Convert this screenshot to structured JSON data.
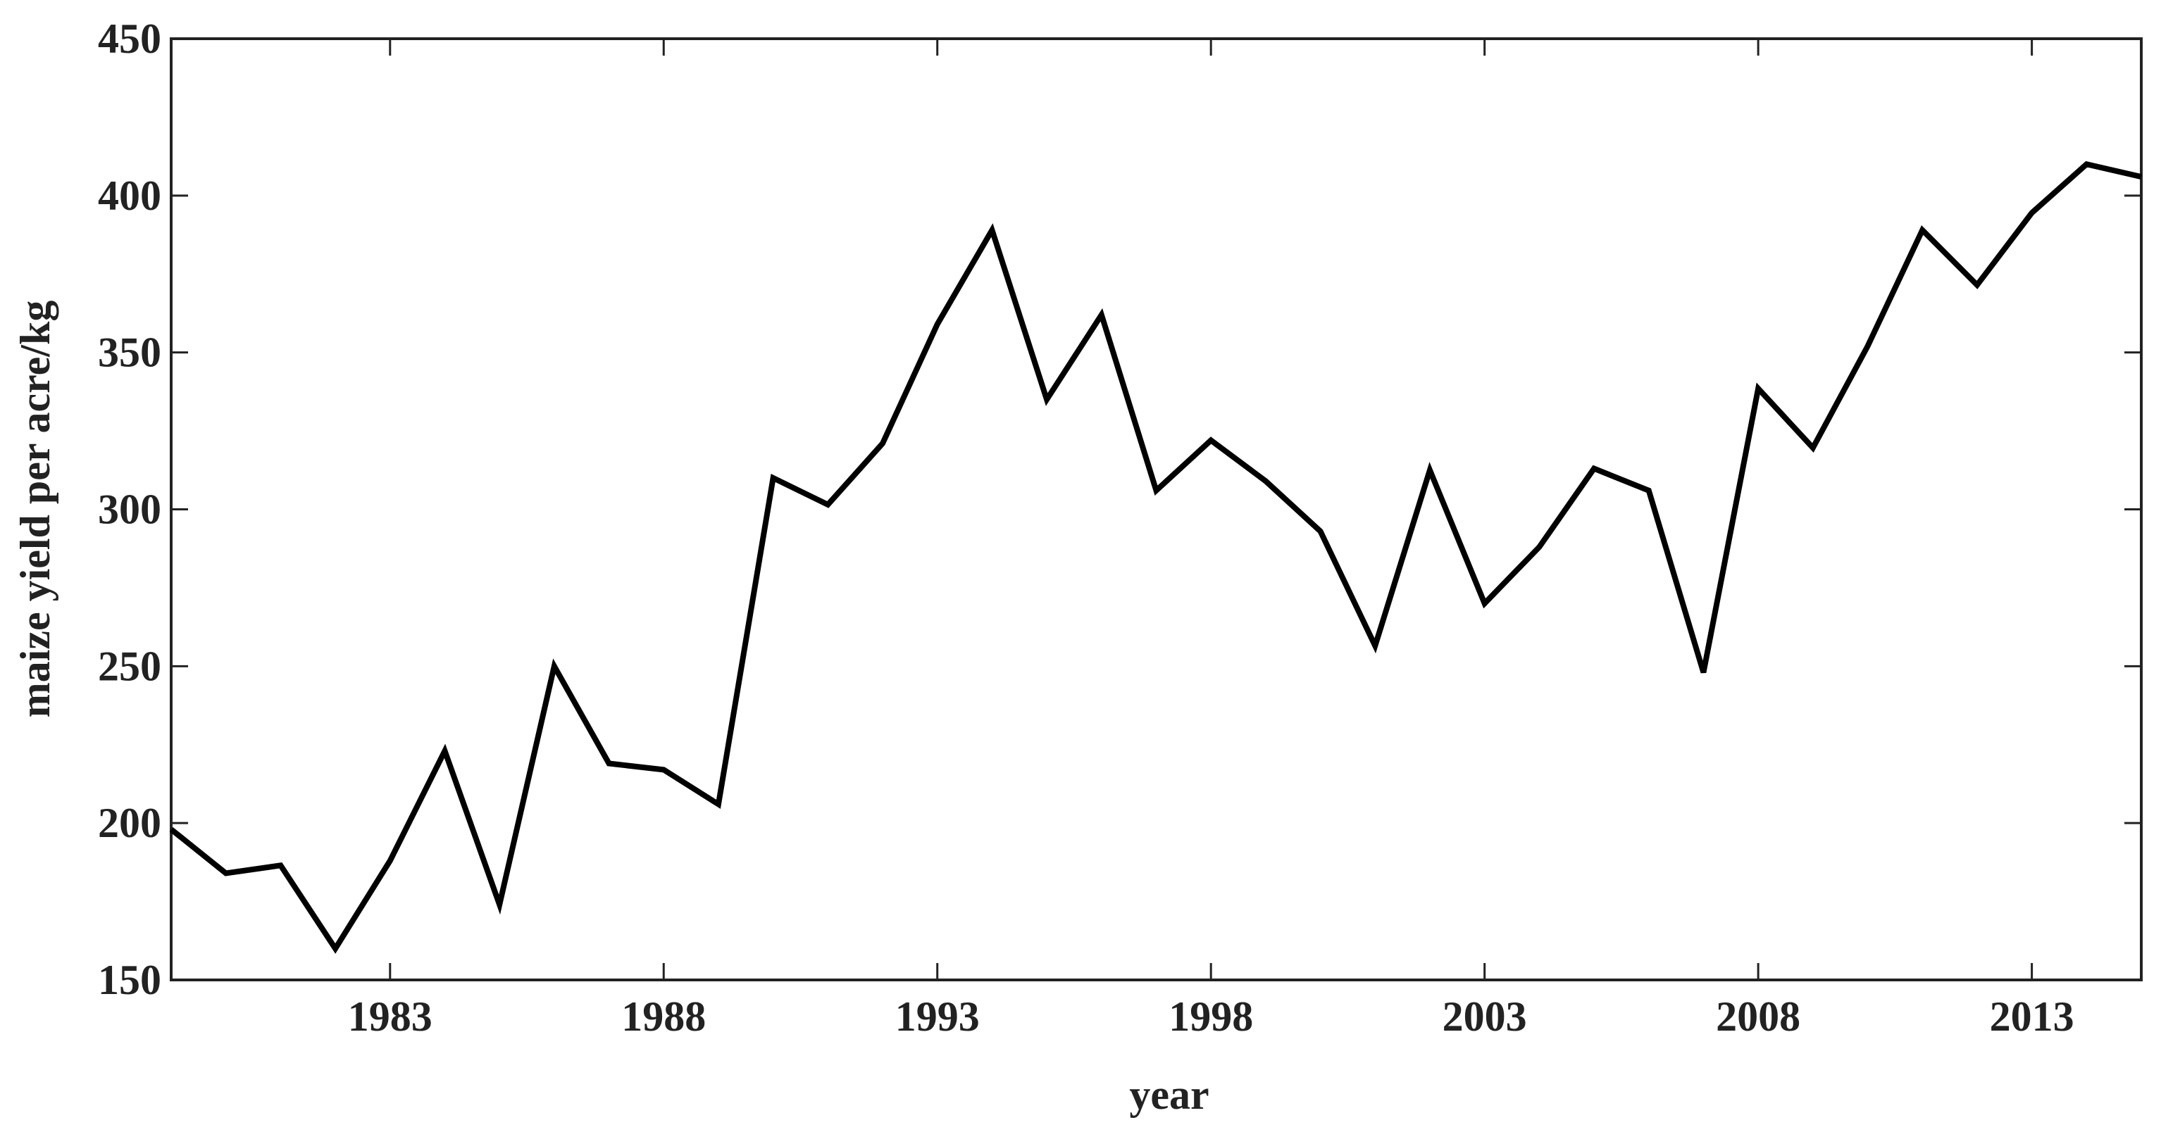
{
  "chart_data": {
    "type": "line",
    "x_label": "year",
    "y_label": "maize yield per acre/kg",
    "x": [
      1979,
      1980,
      1981,
      1982,
      1983,
      1984,
      1985,
      1986,
      1987,
      1988,
      1989,
      1990,
      1991,
      1992,
      1993,
      1994,
      1995,
      1996,
      1997,
      1998,
      1999,
      2000,
      2001,
      2002,
      2003,
      2004,
      2005,
      2006,
      2007,
      2008,
      2009,
      2010,
      2011,
      2012,
      2013,
      2014,
      2015
    ],
    "series": [
      {
        "color": "#000000",
        "values": [
          198,
          184,
          186.5,
          160,
          188,
          223,
          174,
          250,
          219,
          217,
          206,
          310,
          301.5,
          321,
          359,
          389,
          335,
          362,
          306,
          322,
          309,
          293,
          256.5,
          312.5,
          270,
          288,
          313,
          306,
          248,
          338.5,
          319.6,
          352,
          389,
          371.5,
          394.5,
          410,
          406
        ]
      }
    ],
    "xlim": [
      1979,
      2015
    ],
    "xticks": [
      1983,
      1988,
      1993,
      1998,
      2003,
      2008,
      2013
    ],
    "ylim": [
      150,
      450
    ],
    "yticks": [
      150,
      200,
      250,
      300,
      350,
      400,
      450
    ],
    "grid": false
  }
}
